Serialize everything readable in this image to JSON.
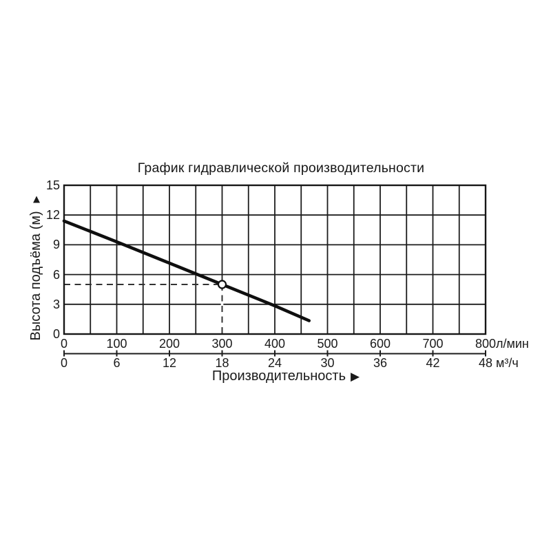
{
  "chart_data": {
    "type": "line",
    "title": "График гидравлической производительности",
    "x_axis": {
      "label": "Производительность",
      "arrow": "▶",
      "range_lmin": [
        0,
        800
      ],
      "grid_step_lmin": 50,
      "primary_unit": "л/мин",
      "primary_ticks": [
        0,
        100,
        200,
        300,
        400,
        500,
        600,
        700,
        800
      ],
      "secondary_unit": "м³/ч",
      "secondary_ticks": [
        0,
        6,
        12,
        18,
        24,
        30,
        36,
        42,
        48
      ]
    },
    "y_axis": {
      "label": "Высота подъёма (м)",
      "arrow": "▲",
      "range_m": [
        0,
        15
      ],
      "grid_step_m": 3,
      "ticks": [
        15,
        12,
        9,
        6,
        3,
        0
      ]
    },
    "series": [
      {
        "name": "curve",
        "x_lmin": [
          0,
          100,
          200,
          300,
          400,
          465
        ],
        "y_m": [
          11.4,
          9.3,
          7.15,
          5.0,
          2.85,
          1.35
        ]
      }
    ],
    "highlight_point": {
      "x_lmin": 300,
      "x_m3h": 18,
      "y_m": 5.0,
      "marker": "open-circle",
      "dashed_guides_to_axes": true
    },
    "colors": {
      "ink": "#1a1a1a",
      "curve": "#0f0f0f",
      "dashed_guide": "#333333",
      "background": "#ffffff"
    }
  }
}
